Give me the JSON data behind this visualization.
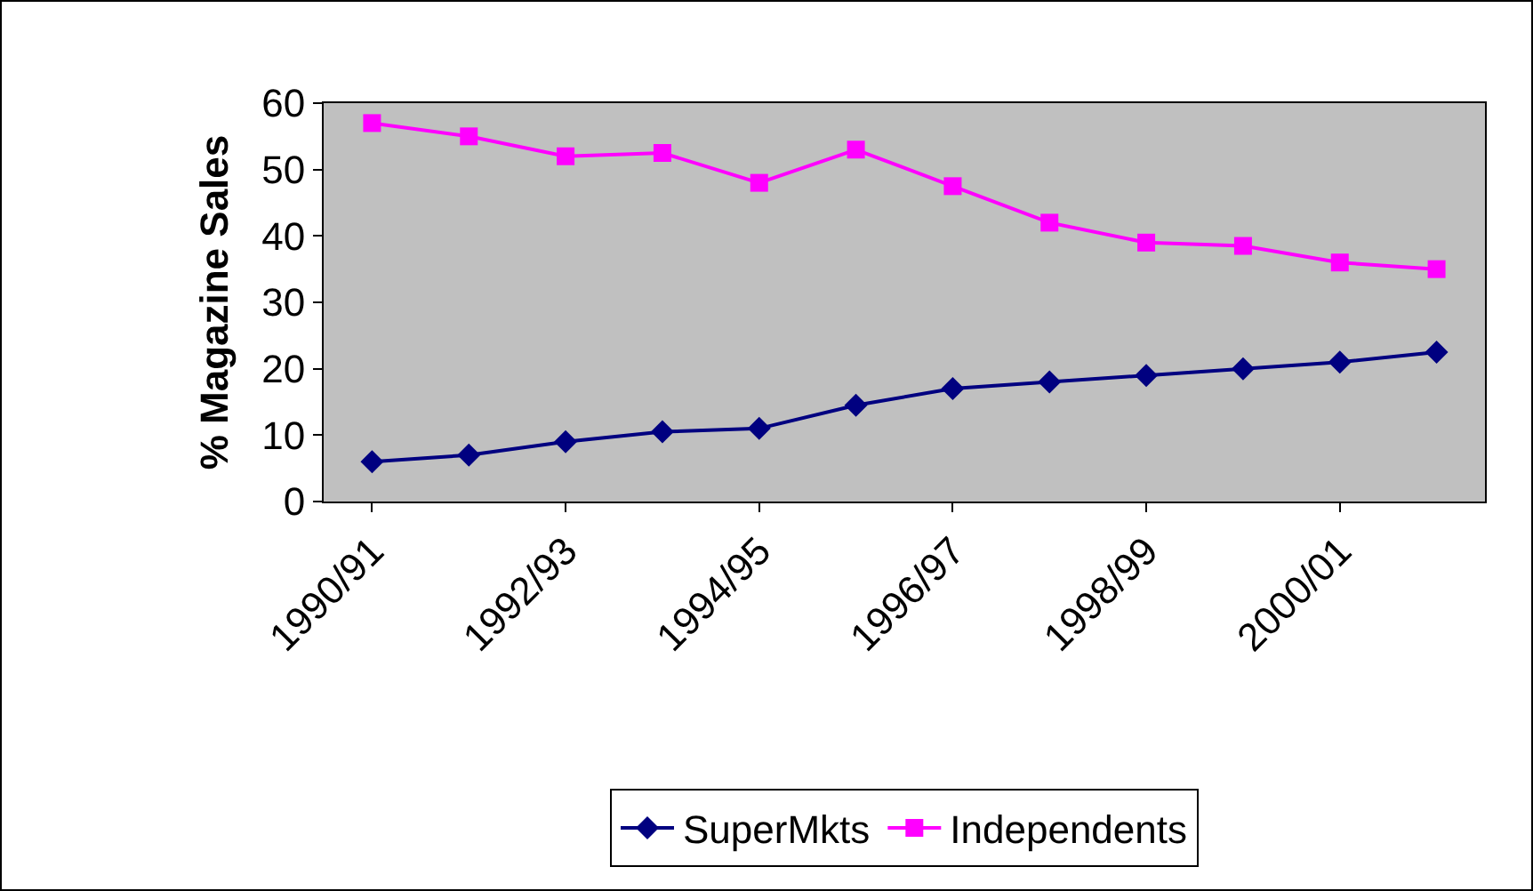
{
  "chart_data": {
    "type": "line",
    "ylabel": "% Magazine Sales",
    "categories": [
      "1990/91",
      null,
      "1992/93",
      null,
      "1994/95",
      null,
      "1996/97",
      null,
      "1998/99",
      null,
      "2000/01",
      null
    ],
    "series": [
      {
        "name": "SuperMkts",
        "color": "#000080",
        "marker": "diamond",
        "values": [
          6,
          7,
          9,
          10.5,
          11,
          14.5,
          17,
          18,
          19,
          20,
          21,
          22.5
        ]
      },
      {
        "name": "Independents",
        "color": "#ff00ff",
        "marker": "square",
        "values": [
          57,
          55,
          52,
          52.5,
          48,
          53,
          47.5,
          42,
          39,
          38.5,
          36,
          35
        ]
      }
    ],
    "ylim": [
      0,
      60
    ],
    "yticks": [
      0,
      10,
      20,
      30,
      40,
      50,
      60
    ],
    "grid": false,
    "legend": "bottom"
  }
}
